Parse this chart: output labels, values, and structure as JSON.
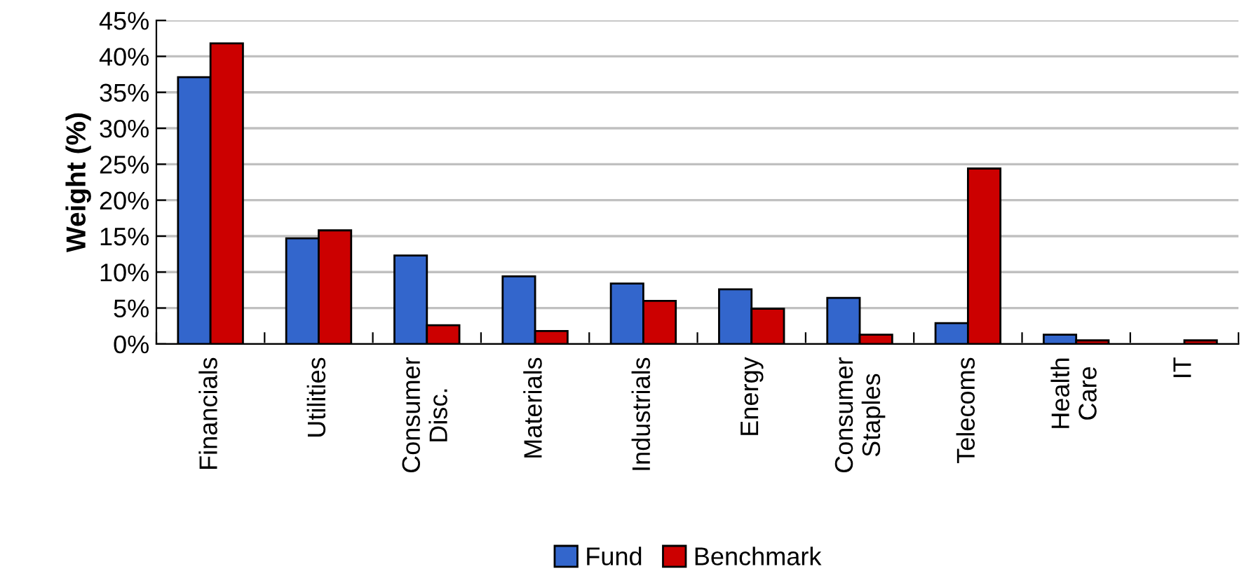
{
  "chart_data": {
    "type": "bar",
    "ylabel": "Weight (%)",
    "categories": [
      "Financials",
      "Utilities",
      "Consumer\nDisc.",
      "Materials",
      "Industrials",
      "Energy",
      "Consumer\nStaples",
      "Telecoms",
      "Health\nCare",
      "IT"
    ],
    "series": [
      {
        "name": "Fund",
        "color": "#3366cc",
        "values": [
          37.1,
          14.7,
          12.3,
          9.4,
          8.4,
          7.6,
          6.4,
          2.9,
          1.3,
          0
        ]
      },
      {
        "name": "Benchmark",
        "color": "#cc0000",
        "values": [
          41.8,
          15.8,
          2.6,
          1.8,
          6.0,
          4.9,
          1.3,
          24.4,
          0.5,
          0.5
        ]
      }
    ],
    "ylim": [
      0,
      45
    ],
    "yticks": [
      {
        "value": 0,
        "label": "0%"
      },
      {
        "value": 5,
        "label": "5%"
      },
      {
        "value": 10,
        "label": "10%"
      },
      {
        "value": 15,
        "label": "15%"
      },
      {
        "value": 20,
        "label": "20%"
      },
      {
        "value": 25,
        "label": "25%"
      },
      {
        "value": 30,
        "label": "30%"
      },
      {
        "value": 35,
        "label": "35%"
      },
      {
        "value": 40,
        "label": "40%"
      },
      {
        "value": 45,
        "label": "45%"
      }
    ],
    "grid": "y",
    "legend": "bottom"
  }
}
